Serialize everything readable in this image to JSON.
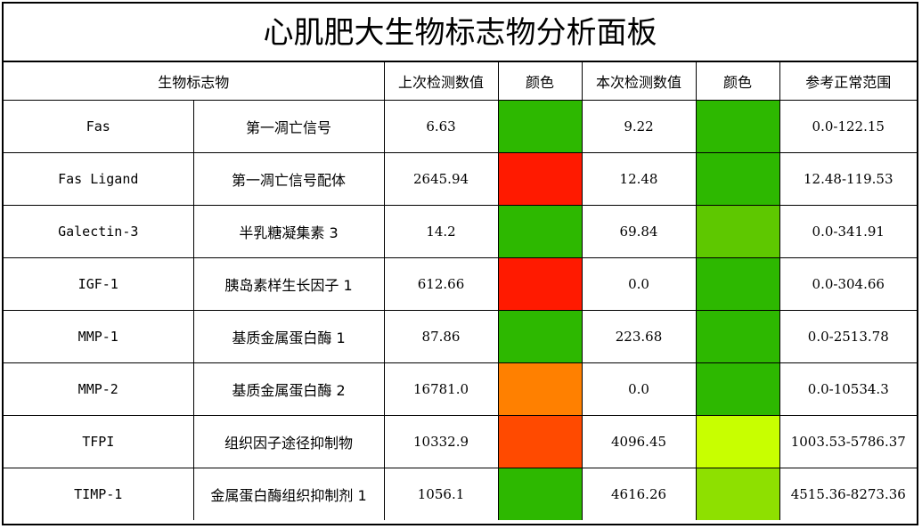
{
  "title": "心肌肥大生物标志物分析面板",
  "headers": {
    "biomarker": "生物标志物",
    "previous": "上次检测数值",
    "color1": "颜色",
    "current": "本次检测数值",
    "color2": "颜色",
    "range": "参考正常范围"
  },
  "palette": {
    "green": "#2db800",
    "red": "#ff1a00",
    "orange": "#ff8000",
    "orange_red": "#ff4a00",
    "light_green": "#5ec800",
    "lime": "#c8ff00",
    "yellow_green": "#8ee000"
  },
  "rows": [
    {
      "code": "Fas",
      "name": "第一凋亡信号",
      "previous": "6.63",
      "previous_color": "#2db800",
      "current": "9.22",
      "current_color": "#2db800",
      "range": "0.0-122.15"
    },
    {
      "code": "Fas Ligand",
      "name": "第一凋亡信号配体",
      "previous": "2645.94",
      "previous_color": "#ff1a00",
      "current": "12.48",
      "current_color": "#2db800",
      "range": "12.48-119.53"
    },
    {
      "code": "Galectin-3",
      "name": "半乳糖凝集素 3",
      "previous": "14.2",
      "previous_color": "#2db800",
      "current": "69.84",
      "current_color": "#5ec800",
      "range": "0.0-341.91"
    },
    {
      "code": "IGF-1",
      "name": "胰岛素样生长因子 1",
      "previous": "612.66",
      "previous_color": "#ff1a00",
      "current": "0.0",
      "current_color": "#2db800",
      "range": "0.0-304.66"
    },
    {
      "code": "MMP-1",
      "name": "基质金属蛋白酶 1",
      "previous": "87.86",
      "previous_color": "#2db800",
      "current": "223.68",
      "current_color": "#2db800",
      "range": "0.0-2513.78"
    },
    {
      "code": "MMP-2",
      "name": "基质金属蛋白酶 2",
      "previous": "16781.0",
      "previous_color": "#ff8000",
      "current": "0.0",
      "current_color": "#2db800",
      "range": "0.0-10534.3"
    },
    {
      "code": "TFPI",
      "name": "组织因子途径抑制物",
      "previous": "10332.9",
      "previous_color": "#ff4a00",
      "current": "4096.45",
      "current_color": "#c8ff00",
      "range": "1003.53-5786.37"
    },
    {
      "code": "TIMP-1",
      "name": "金属蛋白酶组织抑制剂 1",
      "previous": "1056.1",
      "previous_color": "#2db800",
      "current": "4616.26",
      "current_color": "#8ee000",
      "range": "4515.36-8273.36"
    }
  ]
}
